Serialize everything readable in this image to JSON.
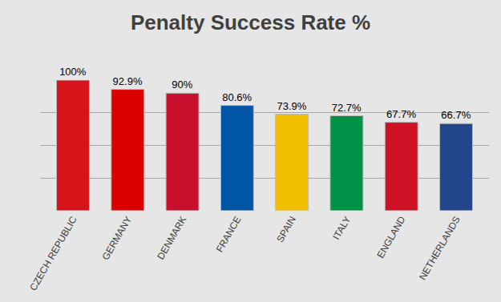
{
  "chart_data": {
    "type": "bar",
    "title": "Penalty Success Rate %",
    "categories": [
      "CZECH REPUBLIC",
      "GERMANY",
      "DENMARK",
      "FRANCE",
      "SPAIN",
      "ITALY",
      "ENGLAND",
      "NETHERLANDS"
    ],
    "values": [
      100,
      92.9,
      90,
      80.6,
      73.9,
      72.7,
      67.7,
      66.7
    ],
    "value_labels": [
      "100%",
      "92.9%",
      "90%",
      "80.6%",
      "73.9%",
      "72.7%",
      "67.7%",
      "66.7%"
    ],
    "colors": [
      "#d7141a",
      "#dd0000",
      "#c8102e",
      "#0055a4",
      "#f1bf00",
      "#009246",
      "#ce1124",
      "#21468b"
    ],
    "ylim": [
      0,
      100
    ],
    "yticks": [
      0,
      25,
      50,
      75,
      100
    ],
    "grid": true,
    "data_labels": true,
    "tick_labels": "x"
  }
}
